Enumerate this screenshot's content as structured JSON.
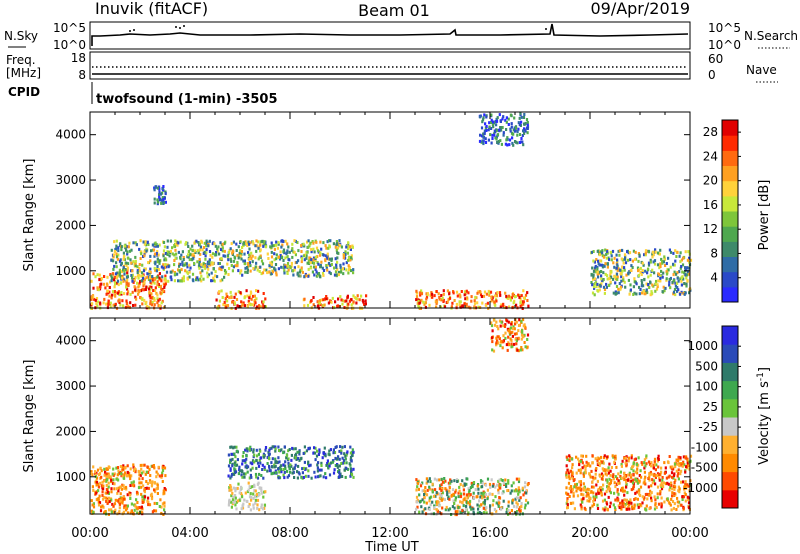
{
  "header": {
    "station": "Inuvik (fitACF)",
    "beam": "Beam 01",
    "date": "09/Apr/2019"
  },
  "nsky_panel": {
    "left_label": "N.Sky",
    "right_label": "N.Search",
    "left_ticks": [
      "10^5",
      "10^0"
    ],
    "right_ticks": [
      "10^5",
      "10^0"
    ]
  },
  "freq_panel": {
    "left_label_line1": "Freq.",
    "left_label_line2": "[MHz]",
    "cpid_label": "CPID",
    "right_label": "Nave",
    "left_ticks": [
      "18",
      "8"
    ],
    "right_ticks": [
      "60",
      "0"
    ]
  },
  "mode_label": "twofsound (1-min) -3505",
  "time_axis": {
    "xlabel": "Time UT",
    "ticks": [
      "00:00",
      "04:00",
      "08:00",
      "12:00",
      "16:00",
      "20:00",
      "00:00"
    ]
  },
  "colors": {
    "power": [
      "#2a2aff",
      "#2a49c8",
      "#2f6ca6",
      "#3e8a6a",
      "#4fa84f",
      "#7ec63a",
      "#c8e83a",
      "#ffd23a",
      "#ffa020",
      "#ff6a10",
      "#ff2a00",
      "#e00000"
    ],
    "velocity": [
      "#e80000",
      "#ff4a00",
      "#ff8a00",
      "#ffb030",
      "#c8c8c8",
      "#6ac43a",
      "#3ea84f",
      "#2f7a6a",
      "#2a4ab8",
      "#2a2ae0"
    ]
  },
  "chart_data": [
    {
      "type": "heatmap",
      "title": "Power",
      "xlabel": "",
      "ylabel": "Slant Range [km]",
      "y_ticks": [
        "1000",
        "2000",
        "3000",
        "4000"
      ],
      "ylim": [
        180,
        4500
      ],
      "colorbar": {
        "label": "Power [dB]",
        "ticks": [
          "4",
          "8",
          "12",
          "16",
          "20",
          "24",
          "28"
        ],
        "range": [
          0,
          30
        ]
      },
      "scatter_regions": [
        {
          "t_start": 0.0,
          "t_end": 3.0,
          "r_min": 200,
          "r_max": 1000,
          "level": "high"
        },
        {
          "t_start": 0.8,
          "t_end": 5.5,
          "r_min": 800,
          "r_max": 1700,
          "level": "mid"
        },
        {
          "t_start": 2.5,
          "t_end": 3.0,
          "r_min": 2500,
          "r_max": 2900,
          "level": "low"
        },
        {
          "t_start": 5.5,
          "t_end": 10.5,
          "r_min": 900,
          "r_max": 1700,
          "level": "mid"
        },
        {
          "t_start": 5.0,
          "t_end": 7.0,
          "r_min": 200,
          "r_max": 600,
          "level": "high"
        },
        {
          "t_start": 8.5,
          "t_end": 11.0,
          "r_min": 200,
          "r_max": 500,
          "level": "high"
        },
        {
          "t_start": 13.0,
          "t_end": 17.5,
          "r_min": 200,
          "r_max": 600,
          "level": "high"
        },
        {
          "t_start": 20.0,
          "t_end": 24.0,
          "r_min": 500,
          "r_max": 1500,
          "level": "mid"
        },
        {
          "t_start": 15.5,
          "t_end": 17.5,
          "r_min": 3800,
          "r_max": 4500,
          "level": "low"
        }
      ]
    },
    {
      "type": "heatmap",
      "title": "Velocity",
      "xlabel": "Time UT",
      "ylabel": "Slant Range [km]",
      "y_ticks": [
        "1000",
        "2000",
        "3000",
        "4000"
      ],
      "ylim": [
        180,
        4500
      ],
      "colorbar": {
        "label": "Velocity [m s^-1]",
        "ticks": [
          "1000",
          "500",
          "100",
          "25",
          "-25",
          "-100",
          "-500",
          "-1000"
        ],
        "range": [
          -1000,
          1000
        ]
      },
      "scatter_regions": [
        {
          "t_start": 0.0,
          "t_end": 3.0,
          "r_min": 200,
          "r_max": 1300,
          "sign": "negative"
        },
        {
          "t_start": 5.5,
          "t_end": 10.5,
          "r_min": 1000,
          "r_max": 1700,
          "sign": "positive"
        },
        {
          "t_start": 5.5,
          "t_end": 7.0,
          "r_min": 300,
          "r_max": 900,
          "sign": "ground"
        },
        {
          "t_start": 13.0,
          "t_end": 17.5,
          "r_min": 200,
          "r_max": 1000,
          "sign": "mixed"
        },
        {
          "t_start": 19.0,
          "t_end": 24.0,
          "r_min": 300,
          "r_max": 1500,
          "sign": "negative"
        },
        {
          "t_start": 16.0,
          "t_end": 17.5,
          "r_min": 3800,
          "r_max": 4500,
          "sign": "negative"
        }
      ]
    }
  ]
}
